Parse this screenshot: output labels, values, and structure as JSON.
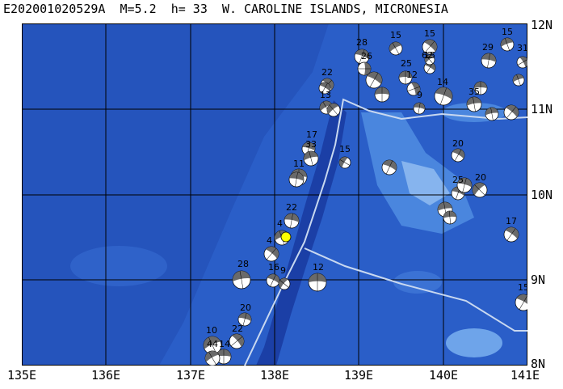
{
  "title": "E202001020529A  M=5.2  h= 33  W. CAROLINE ISLANDS, MICRONESIA",
  "colors": {
    "deep": "#1b3fa6",
    "mid": "#2a5ec8",
    "shallow": "#4a86de",
    "shoal": "#86b4ee",
    "grid": "#000000",
    "boundary": "#c8d8f0",
    "event_marker": "#ffff00"
  },
  "x_labels": [
    "135E",
    "136E",
    "137E",
    "138E",
    "139E",
    "140E",
    "141E"
  ],
  "y_labels": [
    "12N",
    "11N",
    "10N",
    "9N",
    "8N"
  ],
  "beachball_labels": [
    "28",
    "15",
    "15",
    "29",
    "15",
    "31",
    "25",
    "15",
    "62",
    "26",
    "14",
    "35",
    "22",
    "13",
    "9",
    "12",
    "17",
    "33",
    "20",
    "15",
    "11",
    "25",
    "20",
    "17",
    "22",
    "4",
    "4",
    "28",
    "16",
    "9",
    "12",
    "15",
    "20",
    "10",
    "22",
    "14",
    "44"
  ]
}
